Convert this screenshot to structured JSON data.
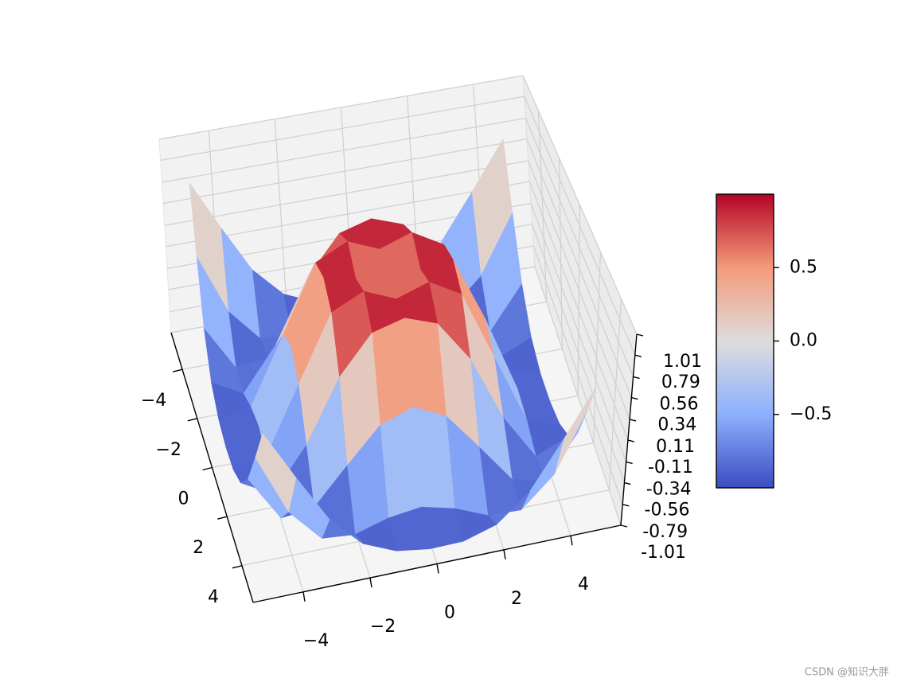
{
  "chart_data": {
    "type": "surface",
    "colormap": "coolwarm",
    "grid": true,
    "x": [
      -5,
      -4,
      -3,
      -2,
      -1,
      0,
      1,
      2,
      3,
      4,
      5
    ],
    "y": [
      -5,
      -4,
      -3,
      -2,
      -1,
      0,
      1,
      2,
      3,
      4,
      5
    ],
    "z": [
      [
        0.709,
        0.12,
        -0.437,
        -0.782,
        -0.926,
        -0.959,
        -0.926,
        -0.782,
        -0.437,
        0.12,
        0.709
      ],
      [
        0.12,
        -0.586,
        -0.959,
        -0.971,
        -0.831,
        -0.757,
        -0.831,
        -0.971,
        -0.959,
        -0.586,
        0.12
      ],
      [
        -0.437,
        -0.959,
        -0.892,
        -0.448,
        -0.02,
        0.141,
        -0.02,
        -0.448,
        -0.892,
        -0.959,
        -0.437
      ],
      [
        -0.782,
        -0.971,
        -0.448,
        0.308,
        0.787,
        0.909,
        0.787,
        0.308,
        -0.448,
        -0.971,
        -0.782
      ],
      [
        -0.926,
        -0.831,
        -0.02,
        0.787,
        0.988,
        0.841,
        0.988,
        0.787,
        -0.02,
        -0.831,
        -0.926
      ],
      [
        -0.959,
        -0.757,
        0.141,
        0.909,
        0.841,
        0,
        0.841,
        0.909,
        0.141,
        -0.757,
        -0.959
      ],
      [
        -0.926,
        -0.831,
        -0.02,
        0.787,
        0.988,
        0.841,
        0.988,
        0.787,
        -0.02,
        -0.831,
        -0.926
      ],
      [
        -0.782,
        -0.971,
        -0.448,
        0.308,
        0.787,
        0.909,
        0.787,
        0.308,
        -0.448,
        -0.971,
        -0.782
      ],
      [
        -0.437,
        -0.959,
        -0.892,
        -0.448,
        -0.02,
        0.141,
        -0.02,
        -0.448,
        -0.892,
        -0.959,
        -0.437
      ],
      [
        0.12,
        -0.586,
        -0.959,
        -0.971,
        -0.831,
        -0.757,
        -0.831,
        -0.971,
        -0.959,
        -0.586,
        0.12
      ],
      [
        0.709,
        0.12,
        -0.437,
        -0.782,
        -0.926,
        -0.959,
        -0.926,
        -0.782,
        -0.437,
        0.12,
        0.709
      ]
    ],
    "xlim": [
      -5.5,
      5.5
    ],
    "ylim": [
      -5.5,
      5.5
    ],
    "zlim": [
      -1.01,
      1.01
    ],
    "xticks": [
      {
        "value": -4,
        "label": "−4"
      },
      {
        "value": -2,
        "label": "−2"
      },
      0,
      2,
      4
    ],
    "yticks": [
      {
        "value": -4,
        "label": "−4"
      },
      {
        "value": -2,
        "label": "−2"
      },
      0,
      2,
      4
    ],
    "zticks": [
      -1.01,
      -0.79,
      -0.56,
      -0.34,
      -0.11,
      0.11,
      0.34,
      0.56,
      0.79,
      1.01
    ],
    "colorbar": {
      "clim": [
        -1,
        1
      ],
      "ticks": [
        {
          "value": -0.5,
          "label": "−0.5"
        },
        {
          "value": 0,
          "label": "0.0"
        },
        0.5
      ]
    }
  },
  "watermark": "CSDN @知识大胖"
}
